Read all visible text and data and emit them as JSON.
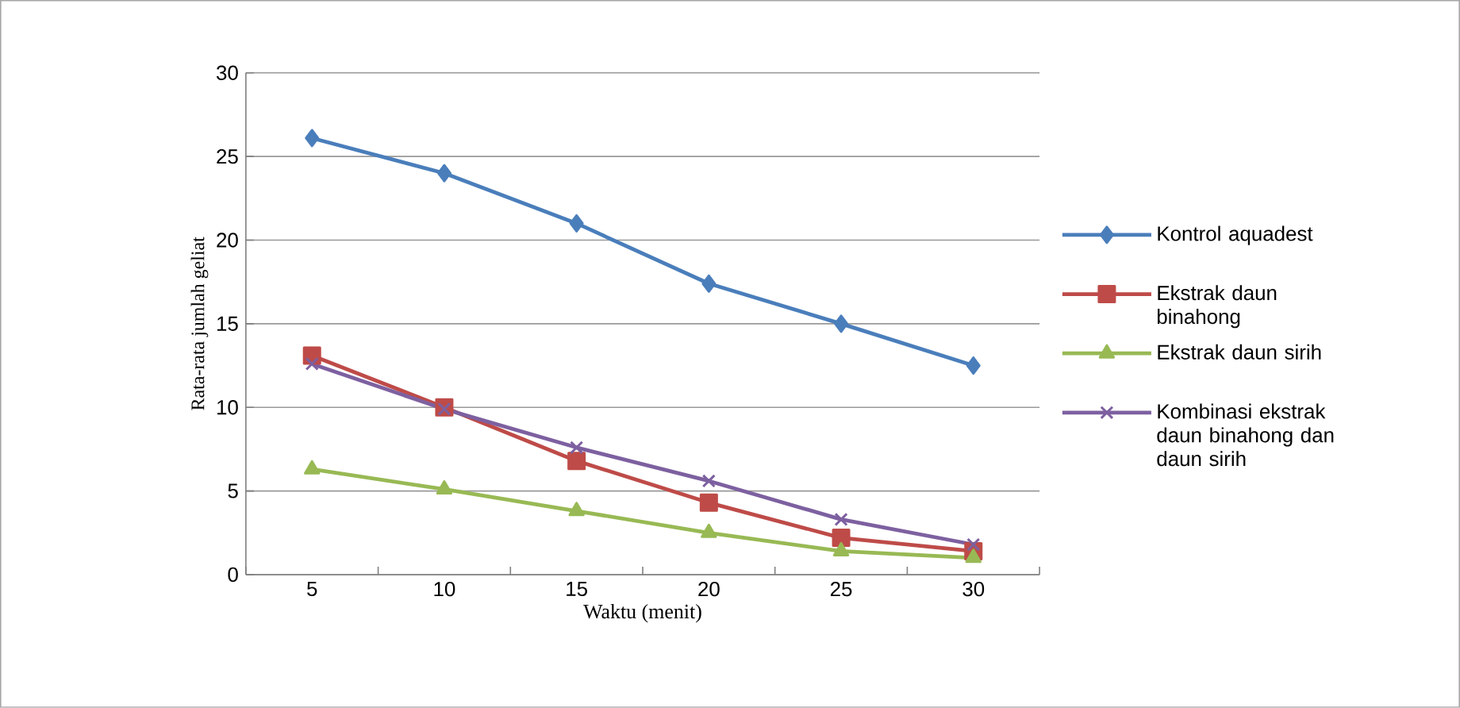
{
  "chart_data": {
    "type": "line",
    "xlabel": "Waktu (menit)",
    "ylabel": "Rata-rata jumlah geliat",
    "categories": [
      "5",
      "10",
      "15",
      "20",
      "25",
      "30"
    ],
    "ylim": [
      0,
      30
    ],
    "yticks": [
      0,
      5,
      10,
      15,
      20,
      25,
      30
    ],
    "grid": "y",
    "legend": "right",
    "series": [
      {
        "name": "Kontrol aquadest",
        "color": "#4a7ebb",
        "marker": "diamond",
        "values": [
          26.1,
          24.0,
          21.0,
          17.4,
          15.0,
          12.5
        ]
      },
      {
        "name": "Ekstrak daun binahong",
        "color": "#be4b48",
        "marker": "square",
        "values": [
          13.1,
          10.0,
          6.8,
          4.3,
          2.2,
          1.4
        ]
      },
      {
        "name": "Ekstrak daun sirih",
        "color": "#98b954",
        "marker": "triangle",
        "values": [
          6.3,
          5.1,
          3.8,
          2.5,
          1.4,
          1.0
        ]
      },
      {
        "name": "Kombinasi ekstrak daun binahong dan daun sirih",
        "color": "#7d60a0",
        "marker": "cross",
        "values": [
          12.6,
          9.9,
          7.6,
          5.6,
          3.3,
          1.8
        ]
      }
    ]
  }
}
